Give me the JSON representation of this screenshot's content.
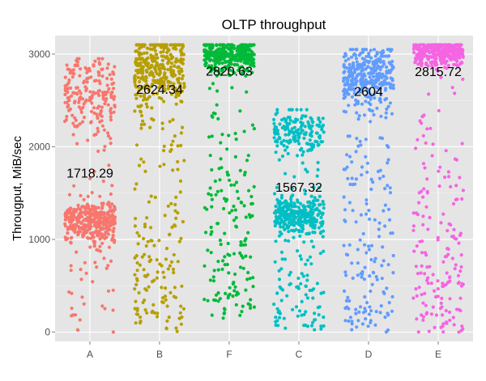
{
  "chart_data": {
    "type": "scatter",
    "subtype": "jitter",
    "title": "OLTP throughput",
    "xlabel": "",
    "ylabel": "Througput, MiB/sec",
    "ylim": [
      -100,
      3200
    ],
    "yticks": [
      0,
      1000,
      2000,
      3000
    ],
    "grid": true,
    "categories": [
      "A",
      "B",
      "F",
      "C",
      "D",
      "E"
    ],
    "series": [
      {
        "name": "A",
        "color": "#f8766d",
        "median_label": "1718.29",
        "median": 1718.29,
        "clusters": [
          {
            "center": 1200,
            "spread": 110,
            "n": 320
          },
          {
            "center": 2580,
            "spread": 220,
            "n": 190
          }
        ],
        "tail": {
          "min": 0,
          "max": 2950,
          "n": 70
        }
      },
      {
        "name": "B",
        "color": "#b79f00",
        "median_label": "2624.34",
        "median": 2624.34,
        "clusters": [
          {
            "center": 2850,
            "spread": 200,
            "n": 330
          }
        ],
        "tail": {
          "min": 0,
          "max": 3100,
          "n": 170
        }
      },
      {
        "name": "F",
        "color": "#00ba38",
        "median_label": "2820.63",
        "median": 2820.63,
        "clusters": [
          {
            "center": 3000,
            "spread": 90,
            "n": 330
          }
        ],
        "tail": {
          "min": 150,
          "max": 3100,
          "n": 170
        }
      },
      {
        "name": "C",
        "color": "#00bfc4",
        "median_label": "1567.32",
        "median": 1567.32,
        "clusters": [
          {
            "center": 1270,
            "spread": 90,
            "n": 260
          },
          {
            "center": 2150,
            "spread": 120,
            "n": 160
          }
        ],
        "tail": {
          "min": 0,
          "max": 2400,
          "n": 130
        }
      },
      {
        "name": "D",
        "color": "#619cff",
        "median_label": "2604",
        "median": 2604,
        "clusters": [
          {
            "center": 2750,
            "spread": 170,
            "n": 330
          }
        ],
        "tail": {
          "min": 0,
          "max": 3050,
          "n": 170
        }
      },
      {
        "name": "E",
        "color": "#f564e3",
        "median_label": "2815.72",
        "median": 2815.72,
        "clusters": [
          {
            "center": 3020,
            "spread": 70,
            "n": 330
          }
        ],
        "tail": {
          "min": 0,
          "max": 3100,
          "n": 170
        }
      }
    ]
  }
}
